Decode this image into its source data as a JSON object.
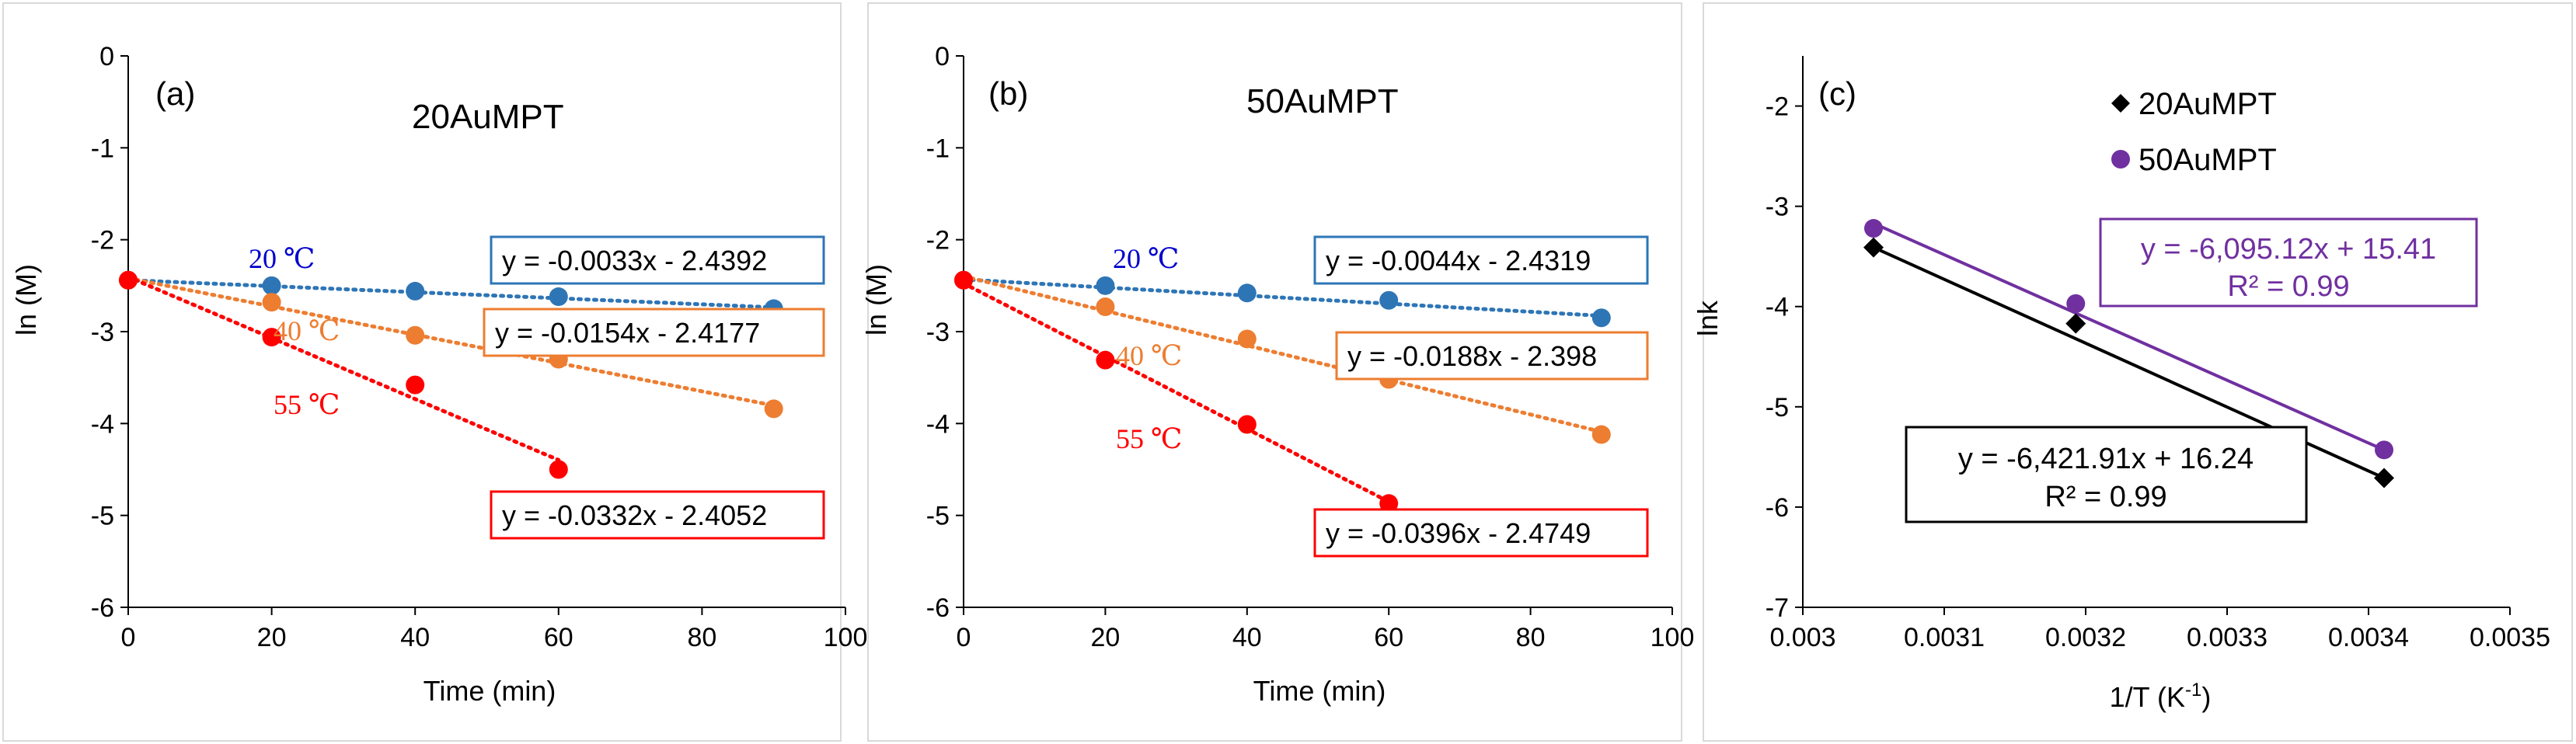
{
  "chart_data": [
    {
      "type": "scatter",
      "panel_label": "(a)",
      "title": "20AuMPT",
      "xlabel": "Time (min)",
      "ylabel": "ln (M)",
      "xlim": [
        0,
        100
      ],
      "ylim": [
        -6,
        0
      ],
      "xticks": [
        "0",
        "20",
        "40",
        "60",
        "80",
        "100"
      ],
      "yticks": [
        "0",
        "-1",
        "-2",
        "-3",
        "-4",
        "-5",
        "-6"
      ],
      "series": [
        {
          "name": "20 ℃",
          "color": "#2E75B6",
          "points": [
            [
              0,
              -2.44
            ],
            [
              20,
              -2.5
            ],
            [
              40,
              -2.56
            ],
            [
              60,
              -2.62
            ],
            [
              90,
              -2.75
            ]
          ],
          "fit": {
            "slope": -0.0033,
            "intercept": -2.4392,
            "x_end": 90
          },
          "equation": "y = -0.0033x - 2.4392"
        },
        {
          "name": "40 ℃",
          "color": "#ED7D31",
          "points": [
            [
              0,
              -2.44
            ],
            [
              20,
              -2.68
            ],
            [
              40,
              -3.04
            ],
            [
              60,
              -3.3
            ],
            [
              90,
              -3.84
            ]
          ],
          "fit": {
            "slope": -0.0154,
            "intercept": -2.4177,
            "x_end": 90
          },
          "equation": "y = -0.0154x - 2.4177"
        },
        {
          "name": "55 ℃",
          "color": "#FF0000",
          "points": [
            [
              0,
              -2.44
            ],
            [
              20,
              -3.06
            ],
            [
              40,
              -3.58
            ],
            [
              60,
              -4.5
            ]
          ],
          "fit": {
            "slope": -0.0332,
            "intercept": -2.4052,
            "x_end": 60
          },
          "equation": "y = -0.0332x - 2.4052"
        }
      ]
    },
    {
      "type": "scatter",
      "panel_label": "(b)",
      "title": "50AuMPT",
      "xlabel": "Time (min)",
      "ylabel": "ln (M)",
      "xlim": [
        0,
        100
      ],
      "ylim": [
        -6,
        0
      ],
      "xticks": [
        "0",
        "20",
        "40",
        "60",
        "80",
        "100"
      ],
      "yticks": [
        "0",
        "-1",
        "-2",
        "-3",
        "-4",
        "-5",
        "-6"
      ],
      "series": [
        {
          "name": "20 ℃",
          "color": "#2E75B6",
          "points": [
            [
              0,
              -2.44
            ],
            [
              20,
              -2.5
            ],
            [
              40,
              -2.58
            ],
            [
              60,
              -2.66
            ],
            [
              90,
              -2.85
            ]
          ],
          "fit": {
            "slope": -0.0044,
            "intercept": -2.4319,
            "x_end": 90
          },
          "equation": "y = -0.0044x - 2.4319"
        },
        {
          "name": "40 ℃",
          "color": "#ED7D31",
          "points": [
            [
              0,
              -2.44
            ],
            [
              20,
              -2.73
            ],
            [
              40,
              -3.08
            ],
            [
              60,
              -3.52
            ],
            [
              90,
              -4.12
            ]
          ],
          "fit": {
            "slope": -0.0188,
            "intercept": -2.398,
            "x_end": 90
          },
          "equation": "y = -0.0188x - 2.398"
        },
        {
          "name": "55 ℃",
          "color": "#FF0000",
          "points": [
            [
              0,
              -2.44
            ],
            [
              20,
              -3.31
            ],
            [
              40,
              -4.01
            ],
            [
              60,
              -4.87
            ]
          ],
          "fit": {
            "slope": -0.0396,
            "intercept": -2.4749,
            "x_end": 60
          },
          "equation": "y = -0.0396x - 2.4749"
        }
      ]
    },
    {
      "type": "scatter",
      "panel_label": "(c)",
      "title": "",
      "xlabel": "1/T (K",
      "xlabel_sup": "-1",
      "xlabel_end": ")",
      "ylabel": "lnk",
      "xlim": [
        0.003,
        0.0035
      ],
      "ylim": [
        -7,
        -1.5
      ],
      "xticks": [
        "0.003",
        "0.0031",
        "0.0032",
        "0.0033",
        "0.0034",
        "0.0035"
      ],
      "yticks": [
        "-2",
        "-3",
        "-4",
        "-5",
        "-6",
        "-7"
      ],
      "series": [
        {
          "name": "20AuMPT",
          "color": "#000000",
          "marker": "diamond",
          "points": [
            [
              0.00305,
              -3.41
            ],
            [
              0.003193,
              -4.17
            ],
            [
              0.003411,
              -5.71
            ]
          ],
          "fit_line": [
            [
              0.00305,
              -3.41
            ],
            [
              0.003411,
              -5.71
            ]
          ],
          "equation": "y = -6,421.91x + 16.24",
          "r2": "R² = 0.99"
        },
        {
          "name": "50AuMPT",
          "color": "#7030A0",
          "marker": "circle",
          "points": [
            [
              0.00305,
              -3.22
            ],
            [
              0.003193,
              -3.97
            ],
            [
              0.003411,
              -5.43
            ]
          ],
          "fit_line": [
            [
              0.00305,
              -3.17
            ],
            [
              0.003411,
              -5.43
            ]
          ],
          "equation": "y = -6,095.12x + 15.41",
          "r2": "R² = 0.99"
        }
      ]
    }
  ]
}
